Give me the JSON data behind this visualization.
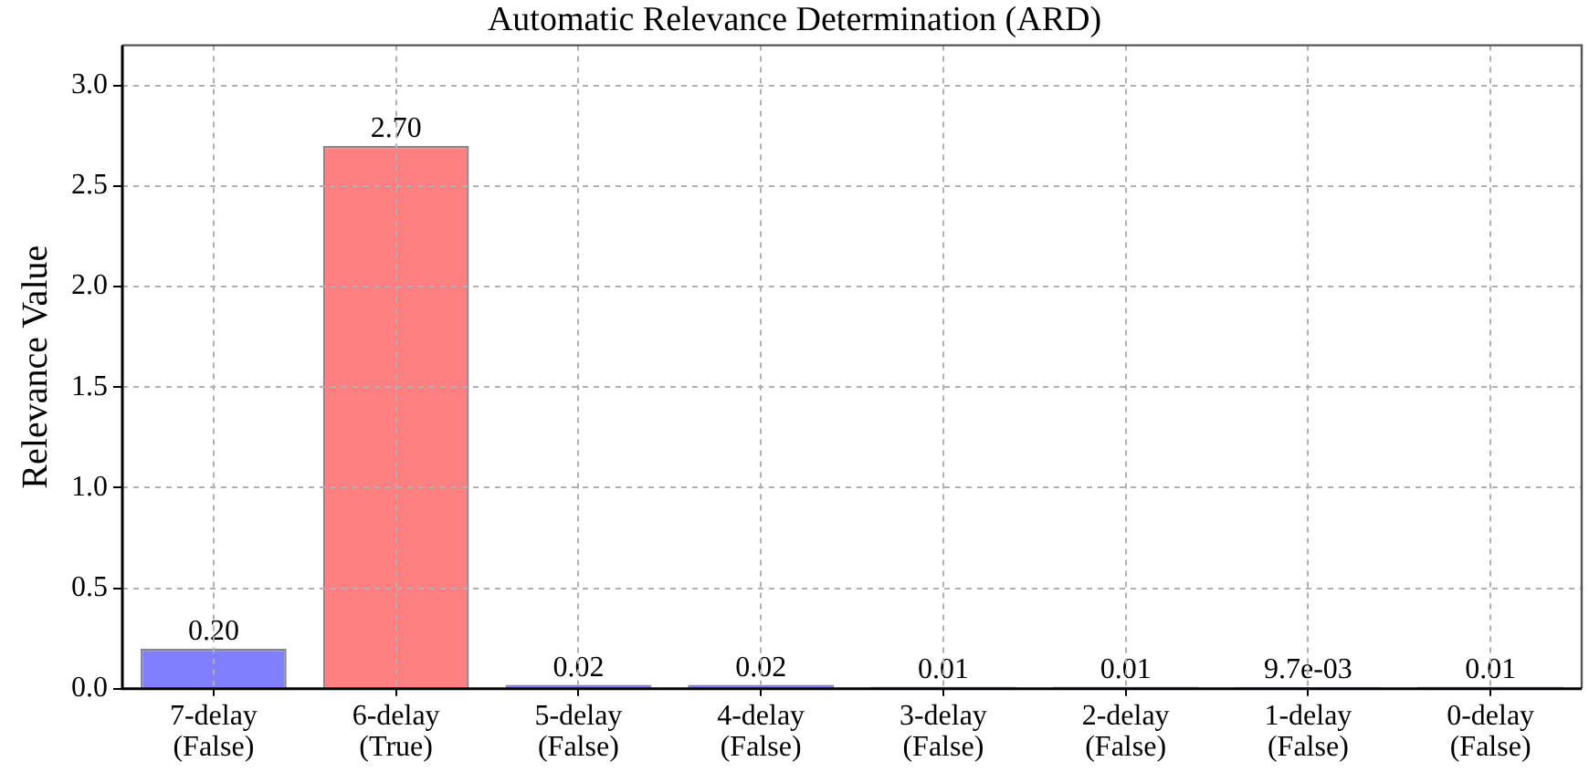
{
  "chart_data": {
    "type": "bar",
    "title": "Automatic Relevance Determination (ARD)",
    "ylabel": "Relevance Value",
    "categories": [
      "7-delay\n(False)",
      "6-delay\n(True)",
      "5-delay\n(False)",
      "4-delay\n(False)",
      "3-delay\n(False)",
      "2-delay\n(False)",
      "1-delay\n(False)",
      "0-delay\n(False)"
    ],
    "values": [
      0.2,
      2.7,
      0.02,
      0.02,
      0.01,
      0.01,
      0.0097,
      0.01
    ],
    "colors": [
      "#8080ff",
      "#ff8080",
      "#8080ff",
      "#8080ff",
      "#8080ff",
      "#8080ff",
      "#8080ff",
      "#8080ff"
    ],
    "value_labels": [
      "0.20",
      "2.70",
      "0.02",
      "0.02",
      "0.01",
      "0.01",
      "9.7e-03",
      "0.01"
    ],
    "ylim": [
      0,
      3.2
    ],
    "yticks": [
      {
        "value": 0,
        "label": "0.0"
      },
      0.5,
      {
        "value": 1,
        "label": "1.0"
      },
      1.5,
      {
        "value": 2,
        "label": "2.0"
      },
      2.5,
      {
        "value": 3,
        "label": "3.0"
      }
    ],
    "grid": true,
    "legend": false
  }
}
